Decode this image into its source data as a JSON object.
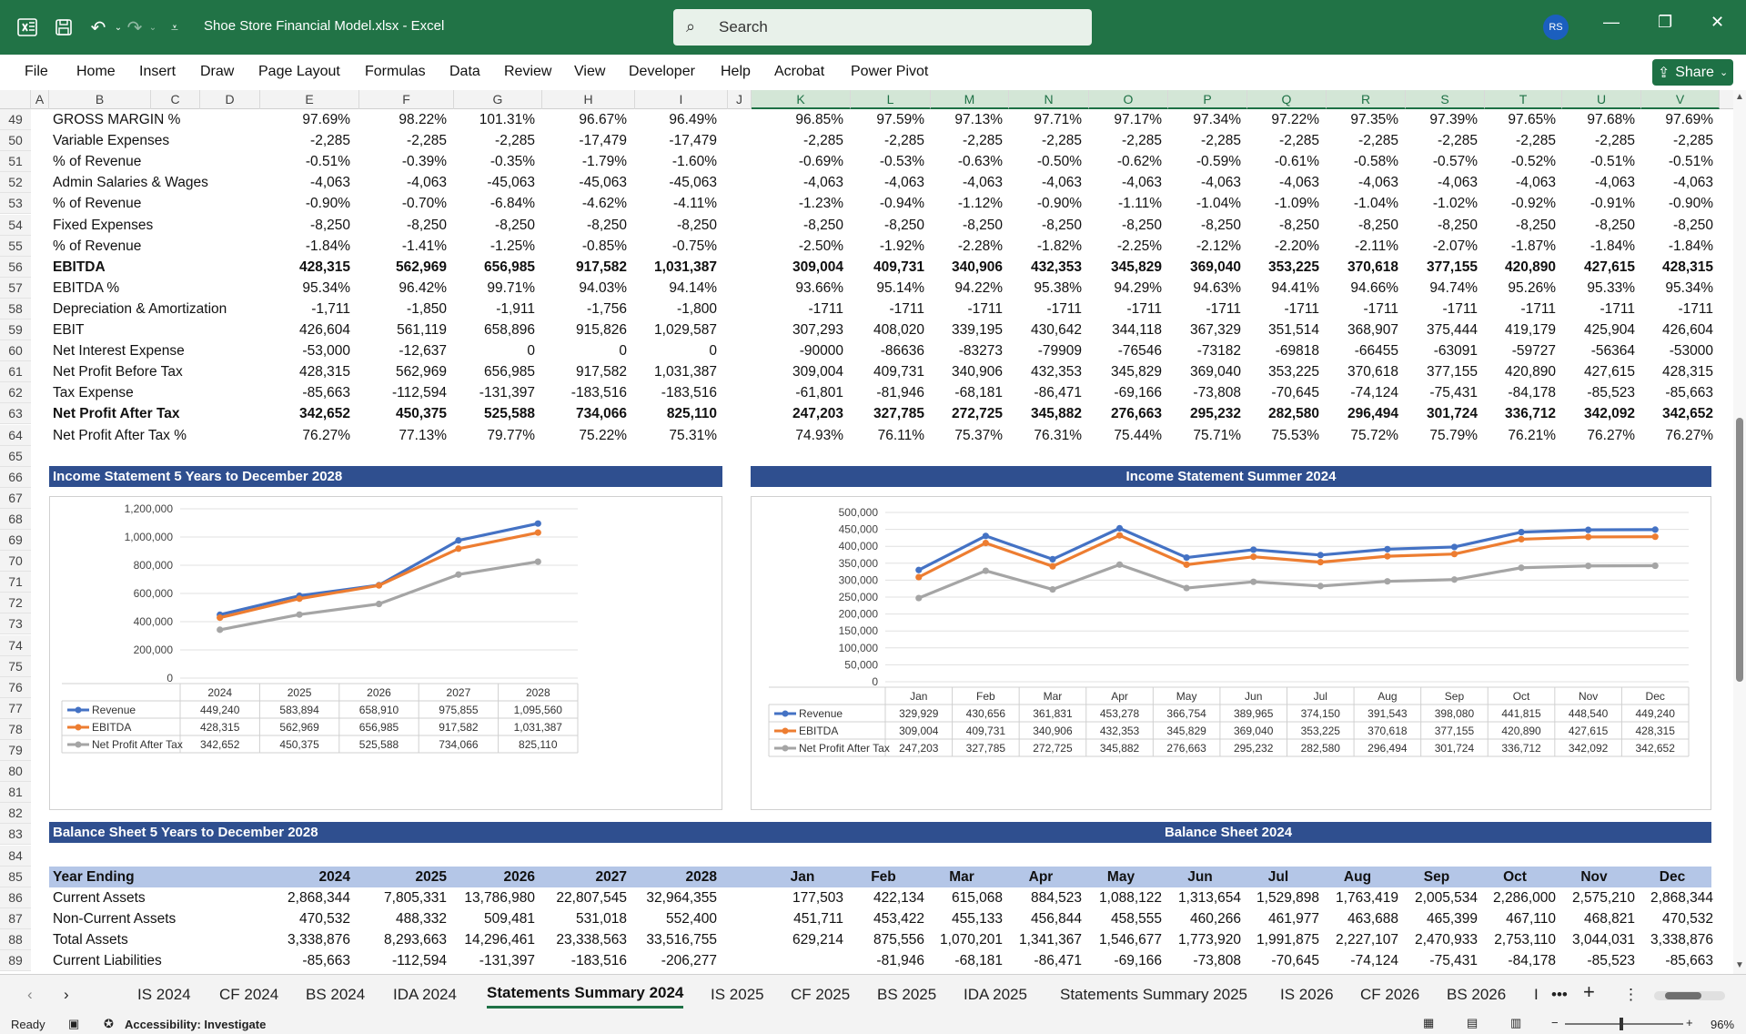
{
  "window": {
    "doc_title": "Shoe Store Financial Model.xlsx  -  Excel",
    "search_placeholder": "Search",
    "user_initials": "RS"
  },
  "menu": [
    "File",
    "Home",
    "Insert",
    "Draw",
    "Page Layout",
    "Formulas",
    "Data",
    "Review",
    "View",
    "Developer",
    "Help",
    "Acrobat",
    "Power Pivot"
  ],
  "share_label": "Share",
  "columns": [
    "A",
    "B",
    "C",
    "D",
    "E",
    "F",
    "G",
    "H",
    "I",
    "J",
    "K",
    "L",
    "M",
    "N",
    "O",
    "P",
    "Q",
    "R",
    "S",
    "T",
    "U",
    "V"
  ],
  "rows": [
    {
      "n": "49",
      "label": "GROSS MARGIN %",
      "bold": false,
      "y5": [
        "97.69%",
        "98.22%",
        "101.31%",
        "96.67%",
        "96.49%"
      ],
      "m": [
        "96.85%",
        "97.59%",
        "97.13%",
        "97.71%",
        "97.17%",
        "97.34%",
        "97.22%",
        "97.35%",
        "97.39%",
        "97.65%",
        "97.68%",
        "97.69%"
      ]
    },
    {
      "n": "50",
      "label": "Variable Expenses",
      "bold": false,
      "y5": [
        "-2,285",
        "-2,285",
        "-2,285",
        "-17,479",
        "-17,479"
      ],
      "m": [
        "-2,285",
        "-2,285",
        "-2,285",
        "-2,285",
        "-2,285",
        "-2,285",
        "-2,285",
        "-2,285",
        "-2,285",
        "-2,285",
        "-2,285",
        "-2,285"
      ]
    },
    {
      "n": "51",
      "label": "% of Revenue",
      "bold": false,
      "y5": [
        "-0.51%",
        "-0.39%",
        "-0.35%",
        "-1.79%",
        "-1.60%"
      ],
      "m": [
        "-0.69%",
        "-0.53%",
        "-0.63%",
        "-0.50%",
        "-0.62%",
        "-0.59%",
        "-0.61%",
        "-0.58%",
        "-0.57%",
        "-0.52%",
        "-0.51%",
        "-0.51%"
      ]
    },
    {
      "n": "52",
      "label": "Admin Salaries & Wages",
      "bold": false,
      "y5": [
        "-4,063",
        "-4,063",
        "-45,063",
        "-45,063",
        "-45,063"
      ],
      "m": [
        "-4,063",
        "-4,063",
        "-4,063",
        "-4,063",
        "-4,063",
        "-4,063",
        "-4,063",
        "-4,063",
        "-4,063",
        "-4,063",
        "-4,063",
        "-4,063"
      ]
    },
    {
      "n": "53",
      "label": "% of Revenue",
      "bold": false,
      "y5": [
        "-0.90%",
        "-0.70%",
        "-6.84%",
        "-4.62%",
        "-4.11%"
      ],
      "m": [
        "-1.23%",
        "-0.94%",
        "-1.12%",
        "-0.90%",
        "-1.11%",
        "-1.04%",
        "-1.09%",
        "-1.04%",
        "-1.02%",
        "-0.92%",
        "-0.91%",
        "-0.90%"
      ]
    },
    {
      "n": "54",
      "label": "Fixed Expenses",
      "bold": false,
      "y5": [
        "-8,250",
        "-8,250",
        "-8,250",
        "-8,250",
        "-8,250"
      ],
      "m": [
        "-8,250",
        "-8,250",
        "-8,250",
        "-8,250",
        "-8,250",
        "-8,250",
        "-8,250",
        "-8,250",
        "-8,250",
        "-8,250",
        "-8,250",
        "-8,250"
      ]
    },
    {
      "n": "55",
      "label": "% of Revenue",
      "bold": false,
      "y5": [
        "-1.84%",
        "-1.41%",
        "-1.25%",
        "-0.85%",
        "-0.75%"
      ],
      "m": [
        "-2.50%",
        "-1.92%",
        "-2.28%",
        "-1.82%",
        "-2.25%",
        "-2.12%",
        "-2.20%",
        "-2.11%",
        "-2.07%",
        "-1.87%",
        "-1.84%",
        "-1.84%"
      ]
    },
    {
      "n": "56",
      "label": "EBITDA",
      "bold": true,
      "y5": [
        "428,315",
        "562,969",
        "656,985",
        "917,582",
        "1,031,387"
      ],
      "m": [
        "309,004",
        "409,731",
        "340,906",
        "432,353",
        "345,829",
        "369,040",
        "353,225",
        "370,618",
        "377,155",
        "420,890",
        "427,615",
        "428,315"
      ]
    },
    {
      "n": "57",
      "label": "EBITDA %",
      "bold": false,
      "y5": [
        "95.34%",
        "96.42%",
        "99.71%",
        "94.03%",
        "94.14%"
      ],
      "m": [
        "93.66%",
        "95.14%",
        "94.22%",
        "95.38%",
        "94.29%",
        "94.63%",
        "94.41%",
        "94.66%",
        "94.74%",
        "95.26%",
        "95.33%",
        "95.34%"
      ]
    },
    {
      "n": "58",
      "label": "Depreciation & Amortization",
      "bold": false,
      "y5": [
        "-1,711",
        "-1,850",
        "-1,911",
        "-1,756",
        "-1,800"
      ],
      "m": [
        "-1711",
        "-1711",
        "-1711",
        "-1711",
        "-1711",
        "-1711",
        "-1711",
        "-1711",
        "-1711",
        "-1711",
        "-1711",
        "-1711"
      ]
    },
    {
      "n": "59",
      "label": "EBIT",
      "bold": false,
      "y5": [
        "426,604",
        "561,119",
        "658,896",
        "915,826",
        "1,029,587"
      ],
      "m": [
        "307,293",
        "408,020",
        "339,195",
        "430,642",
        "344,118",
        "367,329",
        "351,514",
        "368,907",
        "375,444",
        "419,179",
        "425,904",
        "426,604"
      ]
    },
    {
      "n": "60",
      "label": "Net Interest Expense",
      "bold": false,
      "y5": [
        "-53,000",
        "-12,637",
        "0",
        "0",
        "0"
      ],
      "m": [
        "-90000",
        "-86636",
        "-83273",
        "-79909",
        "-76546",
        "-73182",
        "-69818",
        "-66455",
        "-63091",
        "-59727",
        "-56364",
        "-53000"
      ]
    },
    {
      "n": "61",
      "label": "Net Profit Before Tax",
      "bold": false,
      "y5": [
        "428,315",
        "562,969",
        "656,985",
        "917,582",
        "1,031,387"
      ],
      "m": [
        "309,004",
        "409,731",
        "340,906",
        "432,353",
        "345,829",
        "369,040",
        "353,225",
        "370,618",
        "377,155",
        "420,890",
        "427,615",
        "428,315"
      ]
    },
    {
      "n": "62",
      "label": "Tax Expense",
      "bold": false,
      "y5": [
        "-85,663",
        "-112,594",
        "-131,397",
        "-183,516",
        "-183,516"
      ],
      "m": [
        "-61,801",
        "-81,946",
        "-68,181",
        "-86,471",
        "-69,166",
        "-73,808",
        "-70,645",
        "-74,124",
        "-75,431",
        "-84,178",
        "-85,523",
        "-85,663"
      ]
    },
    {
      "n": "63",
      "label": "Net Profit After Tax",
      "bold": true,
      "y5": [
        "342,652",
        "450,375",
        "525,588",
        "734,066",
        "825,110"
      ],
      "m": [
        "247,203",
        "327,785",
        "272,725",
        "345,882",
        "276,663",
        "295,232",
        "282,580",
        "296,494",
        "301,724",
        "336,712",
        "342,092",
        "342,652"
      ]
    },
    {
      "n": "64",
      "label": "Net Profit After Tax %",
      "bold": false,
      "y5": [
        "76.27%",
        "77.13%",
        "79.77%",
        "75.22%",
        "75.31%"
      ],
      "m": [
        "74.93%",
        "76.11%",
        "75.37%",
        "76.31%",
        "75.44%",
        "75.71%",
        "75.53%",
        "75.72%",
        "75.79%",
        "76.21%",
        "76.27%",
        "76.27%"
      ]
    }
  ],
  "empty_rows": [
    "65",
    "66",
    "67",
    "68",
    "69",
    "70",
    "71",
    "72",
    "73",
    "74",
    "75",
    "76",
    "77",
    "78",
    "79",
    "80",
    "81",
    "82",
    "83",
    "84"
  ],
  "banners": {
    "is5": "Income Statement 5 Years to December 2028",
    "is2024": "Income Statement Summer 2024",
    "bs5": "Balance Sheet 5 Years to December 2028",
    "bs2024": "Balance Sheet 2024"
  },
  "chart_data": [
    {
      "type": "line",
      "categories": [
        "2024",
        "2025",
        "2026",
        "2027",
        "2028"
      ],
      "ylim": [
        0,
        1200000
      ],
      "yticks": [
        "0",
        "200,000",
        "400,000",
        "600,000",
        "800,000",
        "1,000,000",
        "1,200,000"
      ],
      "series": [
        {
          "name": "Revenue",
          "color": "#4472c4",
          "values": [
            449240,
            583894,
            658910,
            975855,
            1095560
          ],
          "labels": [
            "449,240",
            "583,894",
            "658,910",
            "975,855",
            "1,095,560"
          ]
        },
        {
          "name": "EBITDA",
          "color": "#ed7d31",
          "values": [
            428315,
            562969,
            656985,
            917582,
            1031387
          ],
          "labels": [
            "428,315",
            "562,969",
            "656,985",
            "917,582",
            "1,031,387"
          ]
        },
        {
          "name": "Net Profit After Tax",
          "color": "#a5a5a5",
          "values": [
            342652,
            450375,
            525588,
            734066,
            825110
          ],
          "labels": [
            "342,652",
            "450,375",
            "525,588",
            "734,066",
            "825,110"
          ]
        }
      ],
      "grid": true,
      "legend": "data-table"
    },
    {
      "type": "line",
      "categories": [
        "Jan",
        "Feb",
        "Mar",
        "Apr",
        "May",
        "Jun",
        "Jul",
        "Aug",
        "Sep",
        "Oct",
        "Nov",
        "Dec"
      ],
      "ylim": [
        0,
        500000
      ],
      "yticks": [
        "0",
        "50,000",
        "100,000",
        "150,000",
        "200,000",
        "250,000",
        "300,000",
        "350,000",
        "400,000",
        "450,000",
        "500,000"
      ],
      "series": [
        {
          "name": "Revenue",
          "color": "#4472c4",
          "values": [
            329929,
            430656,
            361831,
            453278,
            366754,
            389965,
            374150,
            391543,
            398080,
            441815,
            448540,
            449240
          ],
          "labels": [
            "329,929",
            "430,656",
            "361,831",
            "453,278",
            "366,754",
            "389,965",
            "374,150",
            "391,543",
            "398,080",
            "441,815",
            "448,540",
            "449,240"
          ]
        },
        {
          "name": "EBITDA",
          "color": "#ed7d31",
          "values": [
            309004,
            409731,
            340906,
            432353,
            345829,
            369040,
            353225,
            370618,
            377155,
            420890,
            427615,
            428315
          ],
          "labels": [
            "309,004",
            "409,731",
            "340,906",
            "432,353",
            "345,829",
            "369,040",
            "353,225",
            "370,618",
            "377,155",
            "420,890",
            "427,615",
            "428,315"
          ]
        },
        {
          "name": "Net Profit After Tax",
          "color": "#a5a5a5",
          "values": [
            247203,
            327785,
            272725,
            345882,
            276663,
            295232,
            282580,
            296494,
            301724,
            336712,
            342092,
            342652
          ],
          "labels": [
            "247,203",
            "327,785",
            "272,725",
            "345,882",
            "276,663",
            "295,232",
            "282,580",
            "296,494",
            "301,724",
            "336,712",
            "342,092",
            "342,652"
          ]
        }
      ],
      "grid": true,
      "legend": "data-table"
    }
  ],
  "bs": {
    "header": {
      "label": "Year Ending",
      "y5": [
        "2024",
        "2025",
        "2026",
        "2027",
        "2028"
      ],
      "m": [
        "Jan",
        "Feb",
        "Mar",
        "Apr",
        "May",
        "Jun",
        "Jul",
        "Aug",
        "Sep",
        "Oct",
        "Nov",
        "Dec"
      ]
    },
    "rows": [
      {
        "n": "86",
        "label": "Current Assets",
        "y5": [
          "2,868,344",
          "7,805,331",
          "13,786,980",
          "22,807,545",
          "32,964,355"
        ],
        "m": [
          "177,503",
          "422,134",
          "615,068",
          "884,523",
          "1,088,122",
          "1,313,654",
          "1,529,898",
          "1,763,419",
          "2,005,534",
          "2,286,000",
          "2,575,210",
          "2,868,344"
        ]
      },
      {
        "n": "87",
        "label": "Non-Current Assets",
        "y5": [
          "470,532",
          "488,332",
          "509,481",
          "531,018",
          "552,400"
        ],
        "m": [
          "451,711",
          "453,422",
          "455,133",
          "456,844",
          "458,555",
          "460,266",
          "461,977",
          "463,688",
          "465,399",
          "467,110",
          "468,821",
          "470,532"
        ]
      },
      {
        "n": "88",
        "label": "Total Assets",
        "y5": [
          "3,338,876",
          "8,293,663",
          "14,296,461",
          "23,338,563",
          "33,516,755"
        ],
        "m": [
          "629,214",
          "875,556",
          "1,070,201",
          "1,341,367",
          "1,546,677",
          "1,773,920",
          "1,991,875",
          "2,227,107",
          "2,470,933",
          "2,753,110",
          "3,044,031",
          "3,338,876"
        ]
      },
      {
        "n": "89",
        "label": "Current Liabilities",
        "y5": [
          "-85,663",
          "-112,594",
          "-131,397",
          "-183,516",
          "-206,277"
        ],
        "m": [
          "",
          "-81,946",
          "-68,181",
          "-86,471",
          "-69,166",
          "-73,808",
          "-70,645",
          "-74,124",
          "-75,431",
          "-84,178",
          "-85,523",
          "-85,663"
        ]
      }
    ]
  },
  "sheet_tabs": [
    "IS 2024",
    "CF 2024",
    "BS 2024",
    "IDA 2024",
    "Statements Summary 2024",
    "IS 2025",
    "CF 2025",
    "BS 2025",
    "IDA 2025",
    "Statements Summary 2025",
    "IS 2026",
    "CF 2026",
    "BS 2026",
    "I"
  ],
  "active_tab": "Statements Summary 2024",
  "status": {
    "ready": "Ready",
    "accessibility": "Accessibility: Investigate",
    "zoom": "96%"
  }
}
